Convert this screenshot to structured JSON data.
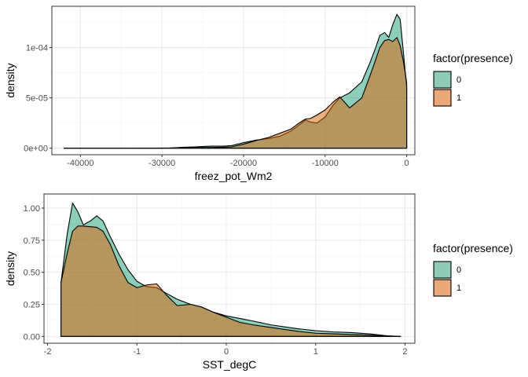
{
  "chart_data": [
    {
      "type": "area",
      "subtype": "density",
      "title": "",
      "xlabel": "freez_pot_Wm2",
      "ylabel": "density",
      "xlim": [
        -43500,
        1000
      ],
      "ylim": [
        -6.5e-06,
        0.000141
      ],
      "x_ticks": [
        -40000,
        -30000,
        -20000,
        -10000,
        0
      ],
      "x_tick_labels": [
        "-40000",
        "-30000",
        "-20000",
        "-10000",
        "0"
      ],
      "y_ticks": [
        0,
        5e-05,
        0.0001
      ],
      "y_tick_labels": [
        "0e+00",
        "5e-05",
        "1e-04"
      ],
      "grid": true,
      "legend": {
        "title": "factor(presence)",
        "position": "right"
      },
      "series": [
        {
          "name": "0",
          "color": "#1b9e77",
          "points": [
            [
              -42000,
              0
            ],
            [
              -35000,
              0
            ],
            [
              -31000,
              5e-08
            ],
            [
              -29000,
              2e-07
            ],
            [
              -27500,
              9e-07
            ],
            [
              -26000,
              1.3e-06
            ],
            [
              -24000,
              2e-06
            ],
            [
              -22500,
              2e-06
            ],
            [
              -21500,
              2.5e-06
            ],
            [
              -20000,
              5.5e-06
            ],
            [
              -18500,
              8e-06
            ],
            [
              -17000,
              9.5e-06
            ],
            [
              -15500,
              1.2e-05
            ],
            [
              -14200,
              1.7e-05
            ],
            [
              -13200,
              2.3e-05
            ],
            [
              -12400,
              2.8e-05
            ],
            [
              -11800,
              2.6e-05
            ],
            [
              -11000,
              2.5e-05
            ],
            [
              -10000,
              3.1e-05
            ],
            [
              -9000,
              4.3e-05
            ],
            [
              -8200,
              5e-05
            ],
            [
              -7000,
              5.5e-05
            ],
            [
              -5500,
              6.6e-05
            ],
            [
              -4500,
              8.5e-05
            ],
            [
              -3800,
              0.0001
            ],
            [
              -3300,
              0.000112
            ],
            [
              -2700,
              0.000115
            ],
            [
              -2200,
              0.00011
            ],
            [
              -1700,
              0.000123
            ],
            [
              -1200,
              0.000133
            ],
            [
              -800,
              0.000128
            ],
            [
              -400,
              9.5e-05
            ],
            [
              0,
              6e-05
            ]
          ]
        },
        {
          "name": "1",
          "color": "#d95f02",
          "points": [
            [
              -42000,
              0
            ],
            [
              -35000,
              0
            ],
            [
              -31000,
              5e-08
            ],
            [
              -29000,
              1.5e-07
            ],
            [
              -27500,
              4e-07
            ],
            [
              -26000,
              6e-07
            ],
            [
              -24000,
              7e-07
            ],
            [
              -22500,
              1e-06
            ],
            [
              -21500,
              1.3e-06
            ],
            [
              -20000,
              4e-06
            ],
            [
              -18500,
              7.5e-06
            ],
            [
              -17000,
              1.05e-05
            ],
            [
              -15500,
              1.5e-05
            ],
            [
              -14200,
              1.9e-05
            ],
            [
              -13200,
              2.5e-05
            ],
            [
              -12400,
              2.9e-05
            ],
            [
              -11800,
              2.95e-05
            ],
            [
              -11000,
              3.3e-05
            ],
            [
              -10000,
              3.8e-05
            ],
            [
              -9000,
              4.6e-05
            ],
            [
              -8200,
              5.1e-05
            ],
            [
              -7000,
              4e-05
            ],
            [
              -5500,
              5e-05
            ],
            [
              -4500,
              7.2e-05
            ],
            [
              -3800,
              8.8e-05
            ],
            [
              -3300,
              0.0001
            ],
            [
              -2700,
              0.000107
            ],
            [
              -2200,
              0.000108
            ],
            [
              -1700,
              0.000106
            ],
            [
              -1200,
              0.00011
            ],
            [
              -800,
              0.000102
            ],
            [
              -400,
              8.6e-05
            ],
            [
              0,
              6.5e-05
            ]
          ]
        }
      ]
    },
    {
      "type": "area",
      "subtype": "density",
      "title": "",
      "xlabel": "SST_degC",
      "ylabel": "density",
      "xlim": [
        -2.04,
        2.11
      ],
      "ylim": [
        -0.053,
        1.11
      ],
      "x_ticks": [
        -2,
        -1,
        0,
        1,
        2
      ],
      "x_tick_labels": [
        "-2",
        "-1",
        "0",
        "1",
        "2"
      ],
      "y_ticks": [
        0,
        0.25,
        0.5,
        0.75,
        1.0
      ],
      "y_tick_labels": [
        "0.00",
        "0.25",
        "0.50",
        "0.75",
        "1.00"
      ],
      "grid": true,
      "legend": {
        "title": "factor(presence)",
        "position": "right"
      },
      "series": [
        {
          "name": "0",
          "color": "#1b9e77",
          "points": [
            [
              -1.85,
              0.42
            ],
            [
              -1.78,
              0.8
            ],
            [
              -1.72,
              1.04
            ],
            [
              -1.66,
              0.97
            ],
            [
              -1.6,
              0.87
            ],
            [
              -1.52,
              0.9
            ],
            [
              -1.45,
              0.94
            ],
            [
              -1.38,
              0.9
            ],
            [
              -1.3,
              0.78
            ],
            [
              -1.2,
              0.64
            ],
            [
              -1.1,
              0.52
            ],
            [
              -1.0,
              0.43
            ],
            [
              -0.9,
              0.39
            ],
            [
              -0.78,
              0.38
            ],
            [
              -0.68,
              0.34
            ],
            [
              -0.55,
              0.29
            ],
            [
              -0.4,
              0.25
            ],
            [
              -0.28,
              0.23
            ],
            [
              -0.15,
              0.19
            ],
            [
              0,
              0.16
            ],
            [
              0.15,
              0.14
            ],
            [
              0.3,
              0.12
            ],
            [
              0.5,
              0.09
            ],
            [
              0.8,
              0.06
            ],
            [
              1.0,
              0.045
            ],
            [
              1.2,
              0.035
            ],
            [
              1.4,
              0.03
            ],
            [
              1.6,
              0.02
            ],
            [
              1.8,
              0.005
            ],
            [
              1.95,
              0
            ]
          ]
        },
        {
          "name": "1",
          "color": "#d95f02",
          "points": [
            [
              -1.85,
              0.42
            ],
            [
              -1.78,
              0.65
            ],
            [
              -1.72,
              0.82
            ],
            [
              -1.66,
              0.86
            ],
            [
              -1.6,
              0.86
            ],
            [
              -1.52,
              0.855
            ],
            [
              -1.45,
              0.85
            ],
            [
              -1.38,
              0.82
            ],
            [
              -1.3,
              0.72
            ],
            [
              -1.2,
              0.55
            ],
            [
              -1.1,
              0.42
            ],
            [
              -1.0,
              0.38
            ],
            [
              -0.9,
              0.4
            ],
            [
              -0.78,
              0.41
            ],
            [
              -0.68,
              0.33
            ],
            [
              -0.55,
              0.24
            ],
            [
              -0.4,
              0.25
            ],
            [
              -0.28,
              0.23
            ],
            [
              -0.15,
              0.19
            ],
            [
              0,
              0.15
            ],
            [
              0.15,
              0.11
            ],
            [
              0.3,
              0.09
            ],
            [
              0.5,
              0.07
            ],
            [
              0.8,
              0.04
            ],
            [
              1.0,
              0.025
            ],
            [
              1.2,
              0.02
            ],
            [
              1.4,
              0.015
            ],
            [
              1.6,
              0.01
            ],
            [
              1.8,
              0.003
            ],
            [
              1.95,
              0
            ]
          ]
        }
      ]
    }
  ]
}
